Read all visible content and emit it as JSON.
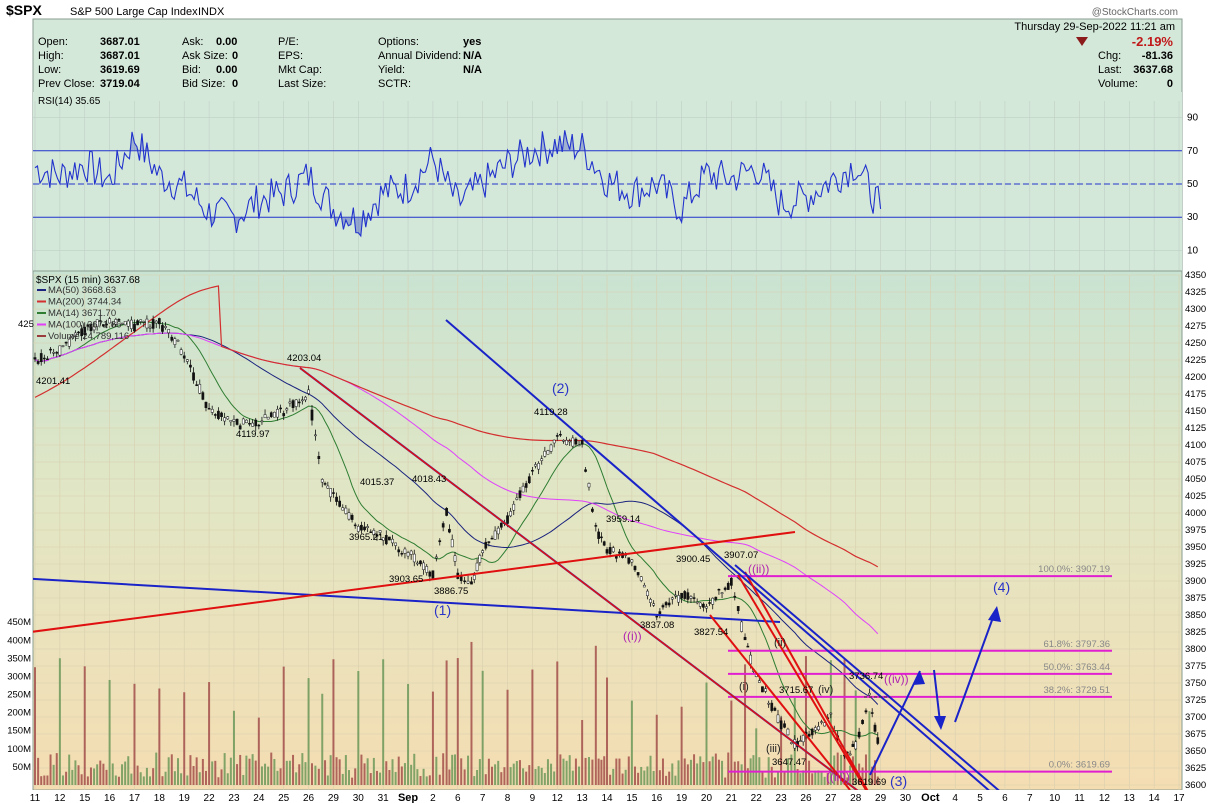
{
  "header": {
    "symbol": "$SPX",
    "name": "S&P 500 Large Cap Index",
    "exchange": "INDX",
    "datetime": "Thursday  29-Sep-2022  11:21 am",
    "change_pct": "-2.19%",
    "credit": "@StockCharts.com"
  },
  "quote": {
    "open_label": "Open:",
    "open": "3687.01",
    "high_label": "High:",
    "high": "3687.01",
    "low_label": "Low:",
    "low": "3619.69",
    "prev_label": "Prev Close:",
    "prev": "3719.04",
    "ask_label": "Ask:",
    "ask": "0.00",
    "asksize_label": "Ask Size:",
    "asksize": "0",
    "bid_label": "Bid:",
    "bid": "0.00",
    "bidsize_label": "Bid Size:",
    "bidsize": "0",
    "pe_label": "P/E:",
    "eps_label": "EPS:",
    "mktcap_label": "Mkt Cap:",
    "lastsize_label": "Last Size:",
    "options_label": "Options:",
    "options": "yes",
    "div_label": "Annual Dividend:",
    "div": "N/A",
    "yield_label": "Yield:",
    "yield": "N/A",
    "sctr_label": "SCTR:",
    "chg_label": "Chg:",
    "chg": "-81.36",
    "last_label": "Last:",
    "last": "3637.68",
    "vol_label": "Volume:",
    "vol": "0"
  },
  "colors": {
    "rsi_bg": "#d4e8da",
    "price_bg_top": "#c9e3d2",
    "price_bg_bottom": "#f5ddb2",
    "candle": "#111111",
    "ma50": "#1a237e",
    "ma200": "#d32f2f",
    "ma14": "#2e7d32",
    "ma100": "#e040fb",
    "rsi": "#2233cc",
    "trend_blue": "#1a23c8",
    "trend_red": "#e01010",
    "fib": "#e020d0",
    "volume": "#9a3c3c"
  },
  "chart_data": [
    {
      "type": "line",
      "title": "RSI(14) 35.65",
      "ylim": [
        0,
        100
      ],
      "y_ticks": [
        "90",
        "70",
        "50",
        "30",
        "10"
      ],
      "reference_lines": [
        70,
        50,
        30
      ],
      "x": [
        "Aug 11",
        "Aug 12",
        "Aug 15",
        "Aug 16",
        "Aug 17",
        "Aug 18",
        "Aug 19",
        "Aug 22",
        "Aug 23",
        "Aug 24",
        "Aug 25",
        "Aug 26",
        "Aug 29",
        "Aug 30",
        "Aug 31",
        "Sep 1",
        "Sep 2",
        "Sep 6",
        "Sep 7",
        "Sep 8",
        "Sep 9",
        "Sep 12",
        "Sep 13",
        "Sep 14",
        "Sep 15",
        "Sep 16",
        "Sep 19",
        "Sep 20",
        "Sep 21",
        "Sep 22",
        "Sep 23",
        "Sep 26",
        "Sep 27",
        "Sep 28",
        "Sep 29"
      ],
      "values": [
        60,
        55,
        62,
        52,
        78,
        55,
        48,
        33,
        30,
        40,
        45,
        55,
        35,
        28,
        45,
        48,
        65,
        38,
        50,
        62,
        70,
        74,
        72,
        52,
        45,
        50,
        35,
        56,
        53,
        60,
        38,
        42,
        52,
        62,
        35
      ]
    },
    {
      "type": "candlestick",
      "title": "$SPX (15 min) 3637.68",
      "ylim": [
        3600,
        4350
      ],
      "y_ticks": [
        "4350",
        "4325",
        "4300",
        "4275",
        "4250",
        "4225",
        "4200",
        "4175",
        "4150",
        "4125",
        "4100",
        "4075",
        "4050",
        "4025",
        "4000",
        "3975",
        "3950",
        "3925",
        "3900",
        "3875",
        "3850",
        "3825",
        "3800",
        "3775",
        "3750",
        "3725",
        "3700",
        "3675",
        "3650",
        "3625",
        "3600"
      ],
      "x_tick_labels": [
        "11",
        "12",
        "15",
        "16",
        "17",
        "18",
        "19",
        "22",
        "23",
        "24",
        "25",
        "26",
        "29",
        "30",
        "31",
        "Sep",
        "2",
        "6",
        "7",
        "8",
        "9",
        "12",
        "13",
        "14",
        "15",
        "16",
        "19",
        "20",
        "21",
        "22",
        "23",
        "26",
        "27",
        "28",
        "29",
        "30",
        "Oct",
        "4",
        "5",
        "6",
        "7",
        "10",
        "11",
        "12",
        "13",
        "14",
        "17"
      ],
      "legend": [
        {
          "label": "MA(50) 3668.63",
          "color": "#1a237e"
        },
        {
          "label": "MA(200) 3744.34",
          "color": "#d32f2f"
        },
        {
          "label": "MA(14) 3671.70",
          "color": "#2e7d32"
        },
        {
          "label": "MA(100) 3671.86",
          "color": "#e040fb"
        },
        {
          "label": "Volume 24,789,116",
          "color": "#9a3c3c"
        }
      ],
      "left_edge_label": "425",
      "close_path": [
        [
          "Aug 11",
          4225
        ],
        [
          "Aug 12",
          4240
        ],
        [
          "Aug 15",
          4270
        ],
        [
          "Aug 16",
          4285
        ],
        [
          "Aug 17",
          4275
        ],
        [
          "Aug 18",
          4280
        ],
        [
          "Aug 19",
          4235
        ],
        [
          "Aug 22",
          4150
        ],
        [
          "Aug 23",
          4130
        ],
        [
          "Aug 24",
          4135
        ],
        [
          "Aug 25",
          4150
        ],
        [
          "Aug 26",
          4175
        ],
        [
          "Aug 26b",
          4050
        ],
        [
          "Aug 29",
          4025
        ],
        [
          "Aug 30",
          3980
        ],
        [
          "Aug 31",
          3965
        ],
        [
          "Sep 1",
          3940
        ],
        [
          "Sep 2",
          3910
        ],
        [
          "Sep 2b",
          4000
        ],
        [
          "Sep 6",
          3910
        ],
        [
          "Sep 6b",
          3895
        ],
        [
          "Sep 7",
          3945
        ],
        [
          "Sep 8",
          3990
        ],
        [
          "Sep 9",
          4060
        ],
        [
          "Sep 12",
          4110
        ],
        [
          "Sep 13",
          4100
        ],
        [
          "Sep 13b",
          3975
        ],
        [
          "Sep 14",
          3945
        ],
        [
          "Sep 15",
          3930
        ],
        [
          "Sep 16",
          3850
        ],
        [
          "Sep 19",
          3880
        ],
        [
          "Sep 20",
          3860
        ],
        [
          "Sep 21",
          3900
        ],
        [
          "Sep 21b",
          3810
        ],
        [
          "Sep 22",
          3760
        ],
        [
          "Sep 23",
          3690
        ],
        [
          "Sep 23b",
          3660
        ],
        [
          "Sep 26",
          3670
        ],
        [
          "Sep 27",
          3700
        ],
        [
          "Sep 27b",
          3640
        ],
        [
          "Sep 28",
          3660
        ],
        [
          "Sep 28b",
          3730
        ],
        [
          "Sep 29",
          3640
        ]
      ],
      "price_labels": [
        "4201.41",
        "4203.04",
        "4119.97",
        "4015.37",
        "4018.43",
        "3965.21",
        "3903.65",
        "3886.75",
        "4119.28",
        "3959.14",
        "3900.45",
        "3907.07",
        "3837.08",
        "3827.54",
        "3715.67",
        "3736.74",
        "3647.47",
        "3619.69"
      ],
      "fibonacci": [
        {
          "label": "100.0%: 3907.19",
          "value": 3907.19
        },
        {
          "label": "61.8%: 3797.36",
          "value": 3797.36
        },
        {
          "label": "50.0%: 3763.44",
          "value": 3763.44
        },
        {
          "label": "38.2%: 3729.51",
          "value": 3729.51
        },
        {
          "label": "0.0%: 3619.69",
          "value": 3619.69
        }
      ],
      "wave_labels": [
        "(1)",
        "(2)",
        "(3)",
        "(4)",
        "((i))",
        "((ii))",
        "((iii))",
        "((iv))",
        "(i)",
        "(ii)",
        "(iii)",
        "(iv)"
      ]
    },
    {
      "type": "bar",
      "title": "Volume",
      "y_ticks": [
        "450M",
        "400M",
        "350M",
        "300M",
        "250M",
        "200M",
        "150M",
        "100M",
        "50M"
      ],
      "ylim": [
        0,
        470
      ]
    }
  ]
}
